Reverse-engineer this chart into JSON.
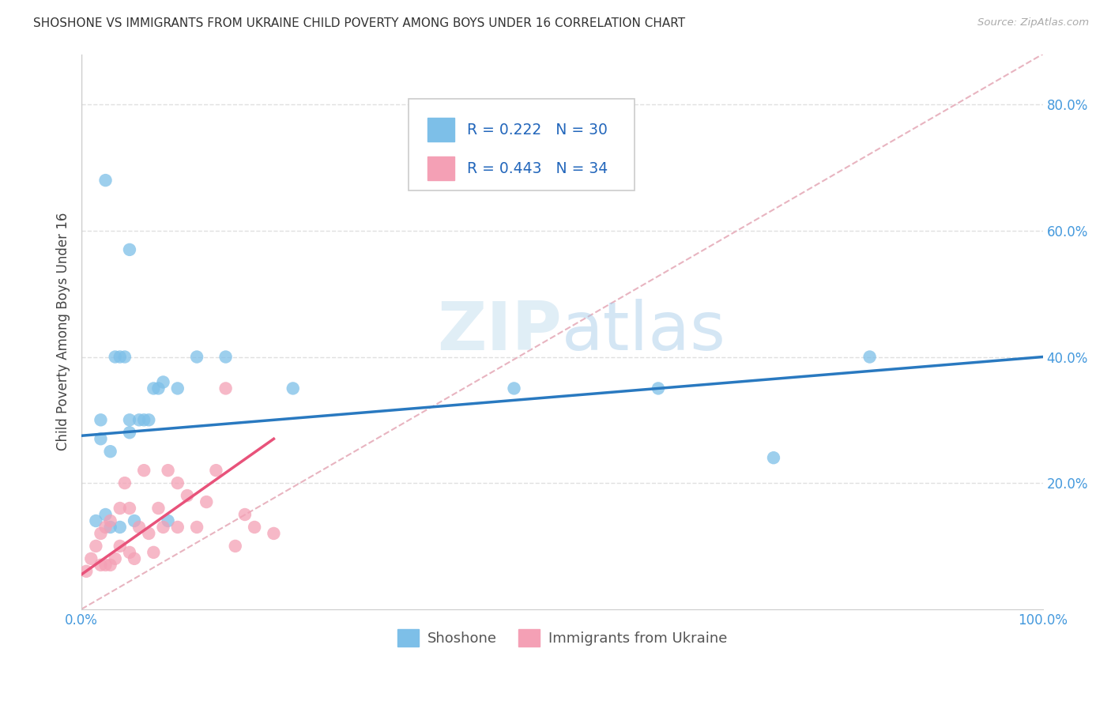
{
  "title": "SHOSHONE VS IMMIGRANTS FROM UKRAINE CHILD POVERTY AMONG BOYS UNDER 16 CORRELATION CHART",
  "source": "Source: ZipAtlas.com",
  "ylabel": "Child Poverty Among Boys Under 16",
  "xlim": [
    0.0,
    1.0
  ],
  "ylim": [
    0.0,
    0.88
  ],
  "yticks": [
    0.2,
    0.4,
    0.6,
    0.8
  ],
  "ytick_labels": [
    "20.0%",
    "40.0%",
    "60.0%",
    "80.0%"
  ],
  "xtick_labels": [
    "0.0%",
    "",
    "",
    "",
    "",
    "100.0%"
  ],
  "shoshone_R": 0.222,
  "shoshone_N": 30,
  "ukraine_R": 0.443,
  "ukraine_N": 34,
  "shoshone_color": "#7dbfe8",
  "ukraine_color": "#f4a0b5",
  "shoshone_line_color": "#2979c0",
  "ukraine_line_color": "#e8527a",
  "diagonal_color": "#e8b4c0",
  "shoshone_x": [
    0.015,
    0.02,
    0.02,
    0.025,
    0.03,
    0.03,
    0.035,
    0.04,
    0.04,
    0.045,
    0.05,
    0.05,
    0.055,
    0.06,
    0.065,
    0.07,
    0.075,
    0.08,
    0.085,
    0.09,
    0.1,
    0.12,
    0.15,
    0.22,
    0.45,
    0.6,
    0.72,
    0.82,
    0.05,
    0.025
  ],
  "shoshone_y": [
    0.14,
    0.27,
    0.3,
    0.15,
    0.25,
    0.13,
    0.4,
    0.4,
    0.13,
    0.4,
    0.28,
    0.3,
    0.14,
    0.3,
    0.3,
    0.3,
    0.35,
    0.35,
    0.36,
    0.14,
    0.35,
    0.4,
    0.4,
    0.35,
    0.35,
    0.35,
    0.24,
    0.4,
    0.57,
    0.68
  ],
  "ukraine_x": [
    0.005,
    0.01,
    0.015,
    0.02,
    0.02,
    0.025,
    0.025,
    0.03,
    0.03,
    0.035,
    0.04,
    0.04,
    0.045,
    0.05,
    0.05,
    0.055,
    0.06,
    0.065,
    0.07,
    0.075,
    0.08,
    0.085,
    0.09,
    0.1,
    0.1,
    0.11,
    0.12,
    0.13,
    0.14,
    0.15,
    0.16,
    0.17,
    0.18,
    0.2
  ],
  "ukraine_y": [
    0.06,
    0.08,
    0.1,
    0.07,
    0.12,
    0.07,
    0.13,
    0.07,
    0.14,
    0.08,
    0.1,
    0.16,
    0.2,
    0.09,
    0.16,
    0.08,
    0.13,
    0.22,
    0.12,
    0.09,
    0.16,
    0.13,
    0.22,
    0.13,
    0.2,
    0.18,
    0.13,
    0.17,
    0.22,
    0.35,
    0.1,
    0.15,
    0.13,
    0.12
  ],
  "shoshone_line_x": [
    0.0,
    1.0
  ],
  "shoshone_line_y": [
    0.275,
    0.4
  ],
  "ukraine_line_x": [
    0.0,
    0.2
  ],
  "ukraine_line_y": [
    0.055,
    0.27
  ],
  "background_color": "#ffffff",
  "grid_color": "#e0e0e0"
}
